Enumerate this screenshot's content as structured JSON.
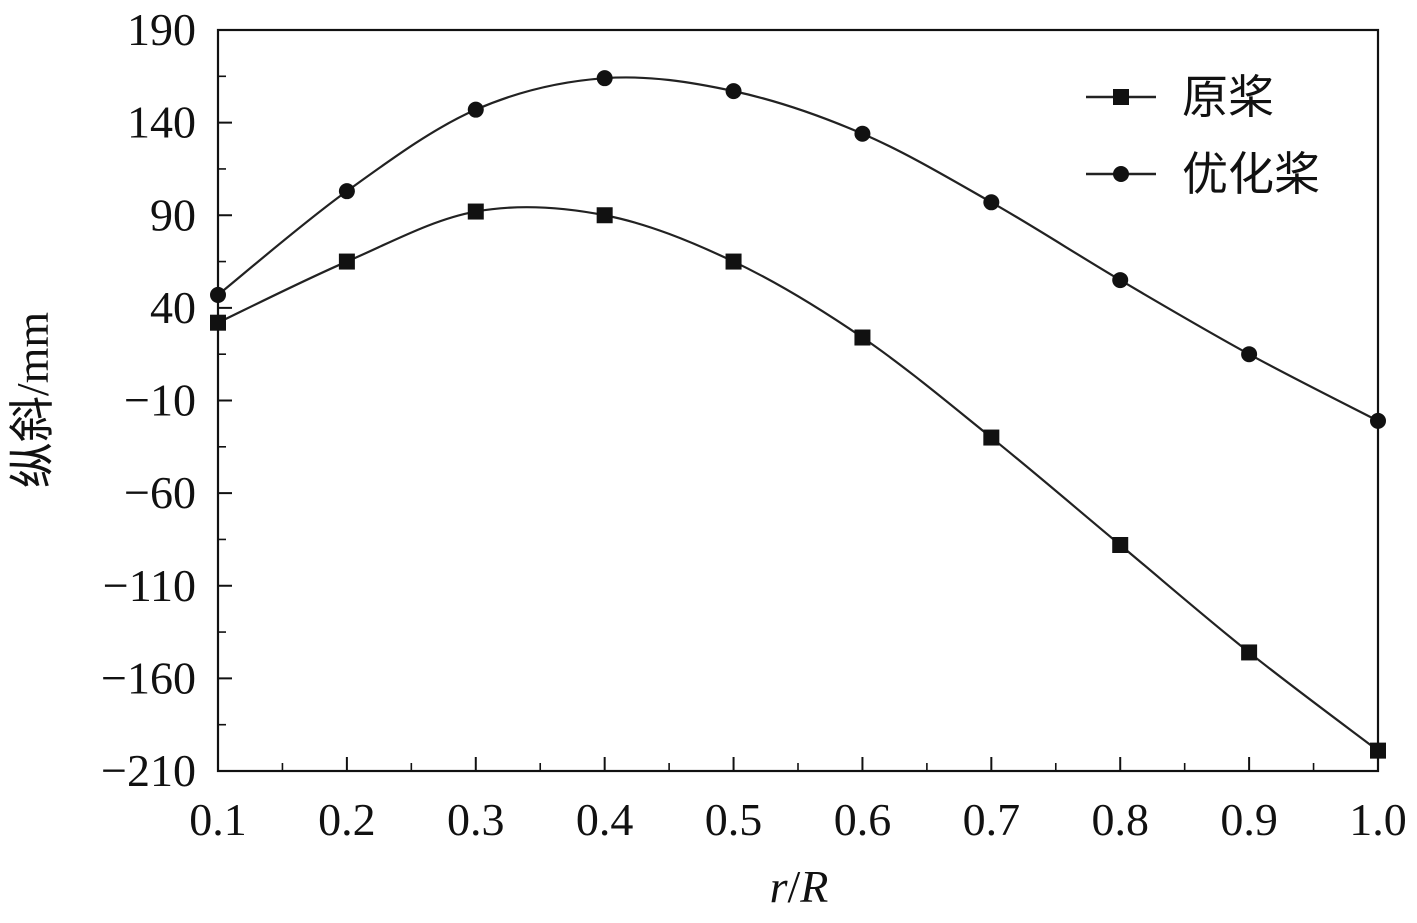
{
  "chart_data": {
    "type": "line",
    "title": "",
    "xlabel": "r/R",
    "ylabel": "纵斜/mm",
    "xlim": [
      0.1,
      1.0
    ],
    "ylim": [
      -210,
      190
    ],
    "xticks": [
      0.1,
      0.2,
      0.3,
      0.4,
      0.5,
      0.6,
      0.7,
      0.8,
      0.9,
      1.0
    ],
    "xtick_labels": [
      "0.1",
      "0.2",
      "0.3",
      "0.4",
      "0.5",
      "0.6",
      "0.7",
      "0.8",
      "0.9",
      "1.0"
    ],
    "yticks": [
      190,
      140,
      90,
      40,
      -10,
      -60,
      -110,
      -160,
      -210
    ],
    "ytick_labels": [
      "190",
      "140",
      "90",
      "40",
      "−10",
      "−60",
      "−110",
      "−160",
      "−210"
    ],
    "x": [
      0.1,
      0.2,
      0.3,
      0.4,
      0.5,
      0.6,
      0.7,
      0.8,
      0.9,
      1.0
    ],
    "series": [
      {
        "name": "原桨",
        "marker": "square",
        "values": [
          32,
          65,
          92,
          90,
          65,
          24,
          -30,
          -88,
          -146,
          -199
        ]
      },
      {
        "name": "优化桨",
        "marker": "circle",
        "values": [
          47,
          103,
          147,
          164,
          157,
          134,
          97,
          55,
          15,
          -21
        ]
      }
    ],
    "legend_position": "top-right",
    "grid": false,
    "line_color": "#222222"
  }
}
